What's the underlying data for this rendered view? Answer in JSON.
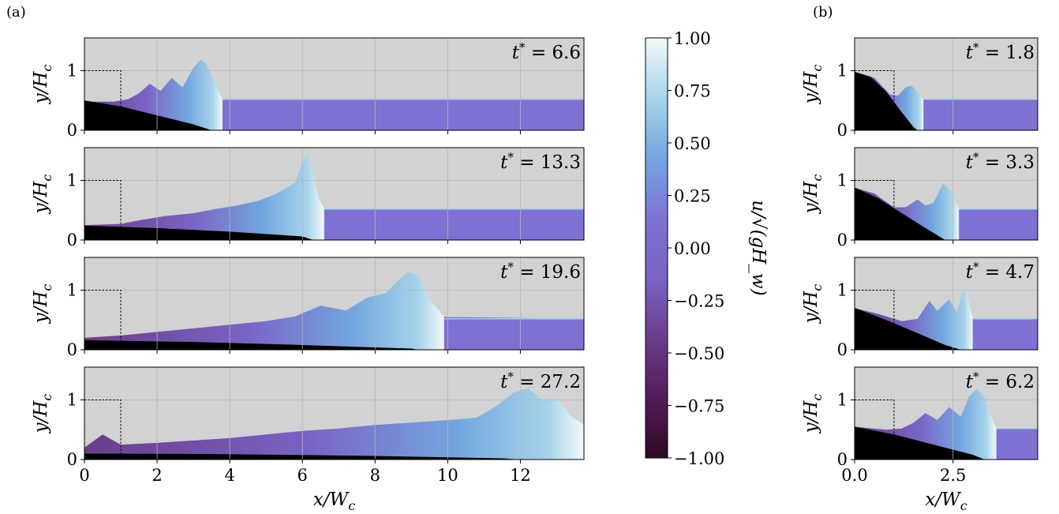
{
  "figure": {
    "panel_labels": [
      "(a)",
      "(b)"
    ]
  },
  "colors": {
    "air": "#d2d2d2",
    "bed": "#000000",
    "grid": "#b4b4b4",
    "dashed": "#000000",
    "colormap": [
      "#2e0a24",
      "#541c59",
      "#6a3d8c",
      "#7a63c5",
      "#7d72d3",
      "#73a7e0",
      "#a7d4e9",
      "#f2f9fb"
    ]
  },
  "chart_data": [
    {
      "type": "heatmap",
      "panel": "(a)",
      "xlabel": "x/W_c",
      "ylabel": "y/H_c",
      "xlim": [
        0,
        13.75
      ],
      "ylim": [
        0,
        1.55
      ],
      "xticks": [
        0,
        2,
        4,
        6,
        8,
        10,
        12
      ],
      "xtick_labels": [
        "0",
        "2",
        "4",
        "6",
        "8",
        "10",
        "12"
      ],
      "yticks": [
        0,
        1
      ],
      "ytick_labels": [
        "0",
        "1"
      ],
      "grid": true,
      "column_outline": {
        "x": [
          0,
          1
        ],
        "y": [
          0,
          1
        ]
      },
      "ambient_water_level": 0.52,
      "snapshots": [
        {
          "t_star": "t^* = 6.6",
          "front_x": 3.8,
          "surface": [
            [
              0,
              0.48
            ],
            [
              0.8,
              0.48
            ],
            [
              1.2,
              0.52
            ],
            [
              1.5,
              0.62
            ],
            [
              1.8,
              0.78
            ],
            [
              2.1,
              0.66
            ],
            [
              2.4,
              0.88
            ],
            [
              2.7,
              0.72
            ],
            [
              3.0,
              1.05
            ],
            [
              3.2,
              1.18
            ],
            [
              3.35,
              1.12
            ],
            [
              3.55,
              0.85
            ],
            [
              3.8,
              0.52
            ],
            [
              13.75,
              0.52
            ]
          ],
          "bed": [
            [
              0,
              0.5
            ],
            [
              1,
              0.4
            ],
            [
              2,
              0.25
            ],
            [
              3,
              0.1
            ],
            [
              3.5,
              0.0
            ]
          ]
        },
        {
          "t_star": "t^* = 13.3",
          "front_x": 6.6,
          "surface": [
            [
              0,
              0.25
            ],
            [
              1,
              0.27
            ],
            [
              1.5,
              0.33
            ],
            [
              2.2,
              0.4
            ],
            [
              3,
              0.45
            ],
            [
              3.6,
              0.52
            ],
            [
              4.2,
              0.58
            ],
            [
              4.8,
              0.66
            ],
            [
              5.3,
              0.78
            ],
            [
              5.8,
              0.96
            ],
            [
              6.0,
              1.3
            ],
            [
              6.15,
              1.45
            ],
            [
              6.3,
              1.1
            ],
            [
              6.45,
              0.7
            ],
            [
              6.6,
              0.52
            ],
            [
              13.75,
              0.52
            ]
          ],
          "bed": [
            [
              0,
              0.24
            ],
            [
              2,
              0.2
            ],
            [
              4,
              0.14
            ],
            [
              6,
              0.06
            ],
            [
              6.3,
              0.0
            ]
          ]
        },
        {
          "t_star": "t^* = 19.6",
          "front_x": 9.9,
          "surface": [
            [
              0,
              0.2
            ],
            [
              1,
              0.24
            ],
            [
              2,
              0.3
            ],
            [
              3,
              0.36
            ],
            [
              4,
              0.42
            ],
            [
              5,
              0.48
            ],
            [
              5.8,
              0.56
            ],
            [
              6.5,
              0.74
            ],
            [
              7.2,
              0.66
            ],
            [
              7.8,
              0.88
            ],
            [
              8.3,
              0.95
            ],
            [
              8.7,
              1.2
            ],
            [
              8.9,
              1.3
            ],
            [
              9.2,
              1.25
            ],
            [
              9.5,
              0.85
            ],
            [
              9.9,
              0.55
            ],
            [
              13.75,
              0.52
            ]
          ],
          "bed": [
            [
              0,
              0.16
            ],
            [
              3,
              0.13
            ],
            [
              6,
              0.08
            ],
            [
              9,
              0.02
            ],
            [
              9.2,
              0.0
            ]
          ]
        },
        {
          "t_star": "t^* = 27.2",
          "front_x": 13.75,
          "surface": [
            [
              0,
              0.2
            ],
            [
              0.5,
              0.42
            ],
            [
              1,
              0.25
            ],
            [
              2,
              0.28
            ],
            [
              3,
              0.32
            ],
            [
              4,
              0.36
            ],
            [
              5,
              0.42
            ],
            [
              6,
              0.48
            ],
            [
              7,
              0.52
            ],
            [
              8,
              0.58
            ],
            [
              9,
              0.62
            ],
            [
              10,
              0.66
            ],
            [
              10.8,
              0.7
            ],
            [
              11.4,
              0.92
            ],
            [
              11.8,
              1.12
            ],
            [
              12.2,
              1.2
            ],
            [
              12.6,
              1.0
            ],
            [
              13.0,
              1.05
            ],
            [
              13.4,
              0.72
            ],
            [
              13.75,
              0.58
            ]
          ],
          "bed": [
            [
              0,
              0.1
            ],
            [
              4,
              0.09
            ],
            [
              8,
              0.06
            ],
            [
              11.5,
              0.02
            ],
            [
              12,
              0.0
            ]
          ]
        }
      ]
    },
    {
      "type": "heatmap",
      "panel": "(b)",
      "xlabel": "x/W_c",
      "ylabel": "y/H_c",
      "xlim": [
        0,
        4.65
      ],
      "ylim": [
        0,
        1.55
      ],
      "xticks": [
        0,
        2.5
      ],
      "xtick_labels": [
        "0.0",
        "2.5"
      ],
      "yticks": [
        0,
        1
      ],
      "ytick_labels": [
        "0",
        "1"
      ],
      "grid": true,
      "column_outline": {
        "x": [
          0,
          1
        ],
        "y": [
          0,
          1
        ]
      },
      "ambient_water_level": 0.52,
      "snapshots": [
        {
          "t_star": "t^* = 1.8",
          "front_x": 1.75,
          "surface": [
            [
              0,
              0.98
            ],
            [
              0.5,
              0.88
            ],
            [
              0.9,
              0.6
            ],
            [
              1.1,
              0.58
            ],
            [
              1.3,
              0.72
            ],
            [
              1.45,
              0.75
            ],
            [
              1.6,
              0.64
            ],
            [
              1.75,
              0.52
            ],
            [
              4.65,
              0.52
            ]
          ],
          "bed": [
            [
              0,
              0.98
            ],
            [
              0.4,
              0.9
            ],
            [
              0.8,
              0.65
            ],
            [
              1.2,
              0.3
            ],
            [
              1.5,
              0.05
            ],
            [
              1.6,
              0.0
            ]
          ]
        },
        {
          "t_star": "t^* = 3.3",
          "front_x": 2.65,
          "surface": [
            [
              0,
              0.88
            ],
            [
              0.5,
              0.78
            ],
            [
              1.0,
              0.55
            ],
            [
              1.3,
              0.55
            ],
            [
              1.6,
              0.68
            ],
            [
              1.8,
              0.58
            ],
            [
              2.0,
              0.62
            ],
            [
              2.25,
              0.95
            ],
            [
              2.45,
              0.82
            ],
            [
              2.65,
              0.52
            ],
            [
              4.65,
              0.52
            ]
          ],
          "bed": [
            [
              0,
              0.88
            ],
            [
              0.6,
              0.7
            ],
            [
              1.2,
              0.45
            ],
            [
              1.8,
              0.2
            ],
            [
              2.3,
              0.0
            ]
          ]
        },
        {
          "t_star": "t^* = 4.7",
          "front_x": 3.0,
          "surface": [
            [
              0,
              0.7
            ],
            [
              0.6,
              0.6
            ],
            [
              1.2,
              0.48
            ],
            [
              1.6,
              0.52
            ],
            [
              1.9,
              0.82
            ],
            [
              2.1,
              0.65
            ],
            [
              2.4,
              0.85
            ],
            [
              2.6,
              0.62
            ],
            [
              2.75,
              1.0
            ],
            [
              2.85,
              0.95
            ],
            [
              3.0,
              0.52
            ],
            [
              4.65,
              0.52
            ]
          ],
          "bed": [
            [
              0,
              0.7
            ],
            [
              0.8,
              0.5
            ],
            [
              1.6,
              0.28
            ],
            [
              2.3,
              0.08
            ],
            [
              2.7,
              0.0
            ]
          ]
        },
        {
          "t_star": "t^* = 6.2",
          "front_x": 3.6,
          "surface": [
            [
              0,
              0.55
            ],
            [
              0.8,
              0.5
            ],
            [
              1.2,
              0.52
            ],
            [
              1.5,
              0.62
            ],
            [
              1.8,
              0.78
            ],
            [
              2.1,
              0.66
            ],
            [
              2.4,
              0.88
            ],
            [
              2.7,
              0.72
            ],
            [
              2.9,
              1.05
            ],
            [
              3.1,
              1.18
            ],
            [
              3.3,
              1.05
            ],
            [
              3.45,
              0.75
            ],
            [
              3.6,
              0.52
            ],
            [
              4.65,
              0.52
            ]
          ],
          "bed": [
            [
              0,
              0.55
            ],
            [
              1,
              0.42
            ],
            [
              2,
              0.25
            ],
            [
              3,
              0.08
            ],
            [
              3.3,
              0.0
            ]
          ]
        }
      ]
    },
    {
      "type": "heatmap",
      "role": "colorbar",
      "label": "u/√(gH_w)",
      "range": [
        -1.0,
        1.0
      ],
      "ticks": [
        "−1.00",
        "−0.75",
        "−0.50",
        "−0.25",
        "0.00",
        "0.25",
        "0.50",
        "0.75",
        "1.00"
      ]
    }
  ]
}
